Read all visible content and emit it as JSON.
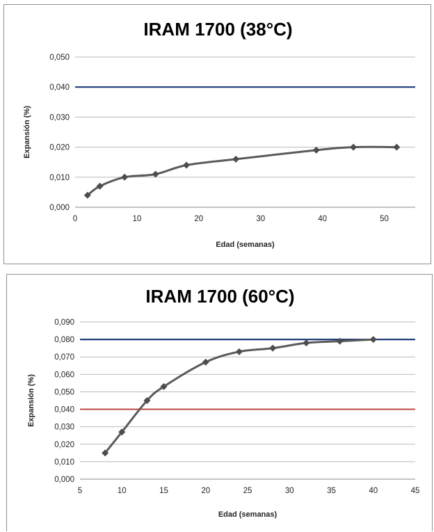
{
  "chart_data": [
    {
      "type": "line",
      "title": "IRAM 1700 (38°C)",
      "xlabel": "Edad (semanas)",
      "ylabel": "Expansión (%)",
      "xlim": [
        0,
        55
      ],
      "ylim": [
        0,
        0.05
      ],
      "x_ticks": [
        0,
        10,
        20,
        30,
        40,
        50
      ],
      "x_tick_labels": [
        "0",
        "10",
        "20",
        "30",
        "40",
        "50"
      ],
      "y_ticks": [
        0,
        0.01,
        0.02,
        0.03,
        0.04,
        0.05
      ],
      "y_tick_labels": [
        "0,000",
        "0,010",
        "0,020",
        "0,030",
        "0,040",
        "0,050"
      ],
      "grid": true,
      "series": [
        {
          "x": [
            2,
            4,
            8,
            13,
            18,
            26,
            39,
            45,
            52
          ],
          "y": [
            0.004,
            0.007,
            0.01,
            0.011,
            0.014,
            0.016,
            0.019,
            0.02,
            0.02
          ],
          "color": "#595959"
        }
      ],
      "reference_lines": [
        {
          "y": 0.04,
          "color": "#1f3a7a"
        }
      ]
    },
    {
      "type": "line",
      "title": "IRAM 1700 (60°C)",
      "xlabel": "Edad (semanas)",
      "ylabel": "Expansión (%)",
      "xlim": [
        5,
        45
      ],
      "ylim": [
        0,
        0.09
      ],
      "x_ticks": [
        5,
        10,
        15,
        20,
        25,
        30,
        35,
        40,
        45
      ],
      "x_tick_labels": [
        "5",
        "10",
        "15",
        "20",
        "25",
        "30",
        "35",
        "40",
        "45"
      ],
      "y_ticks": [
        0,
        0.01,
        0.02,
        0.03,
        0.04,
        0.05,
        0.06,
        0.07,
        0.08,
        0.09
      ],
      "y_tick_labels": [
        "0,000",
        "0,010",
        "0,020",
        "0,030",
        "0,040",
        "0,050",
        "0,060",
        "0,070",
        "0,080",
        "0,090"
      ],
      "grid": true,
      "series": [
        {
          "x": [
            8,
            10,
            13,
            15,
            20,
            24,
            28,
            32,
            36,
            40
          ],
          "y": [
            0.015,
            0.027,
            0.045,
            0.053,
            0.067,
            0.073,
            0.075,
            0.078,
            0.079,
            0.08
          ],
          "color": "#595959"
        }
      ],
      "reference_lines": [
        {
          "y": 0.08,
          "color": "#1f3a7a"
        },
        {
          "y": 0.04,
          "color": "#c0504d"
        }
      ]
    }
  ]
}
